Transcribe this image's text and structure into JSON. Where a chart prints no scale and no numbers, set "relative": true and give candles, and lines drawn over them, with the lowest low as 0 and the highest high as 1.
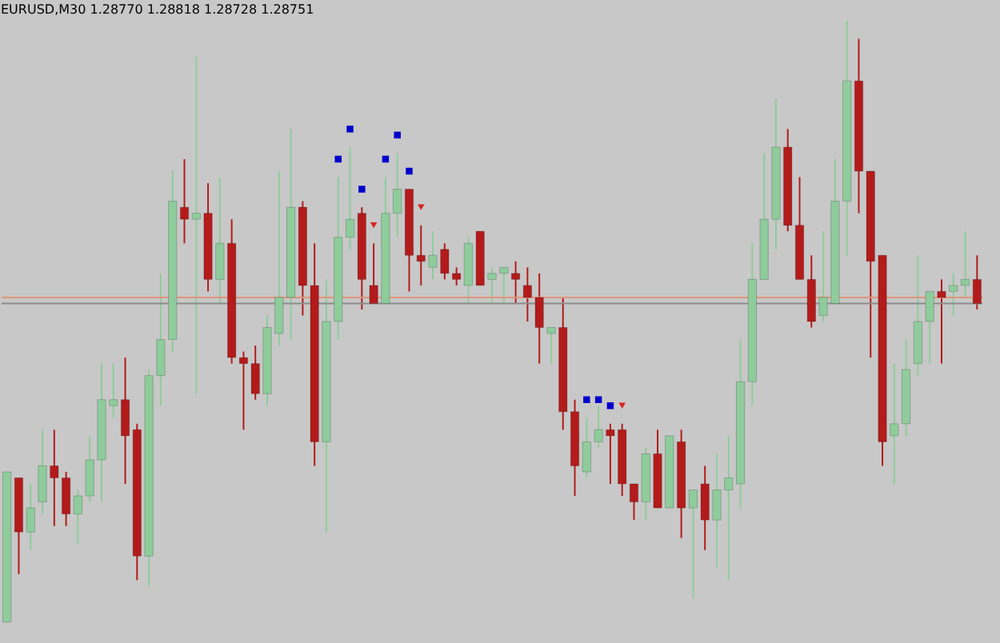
{
  "chart_data": {
    "type": "candlestick",
    "title": "EURUSD,M30 1.28770 1.28818 1.28728 1.28751",
    "relative": true,
    "tick_labels": false,
    "categories": [
      null,
      null,
      null,
      null,
      null,
      null,
      null,
      null,
      null,
      null,
      null,
      null,
      null,
      null,
      null,
      null,
      null,
      null,
      null,
      null,
      null,
      null,
      null,
      null,
      null,
      null,
      null,
      null,
      null,
      null,
      null,
      null,
      null,
      null,
      null,
      null,
      null,
      null,
      null,
      null,
      null,
      null,
      null,
      null,
      null,
      null,
      null,
      null,
      null,
      null,
      null,
      null,
      null,
      null,
      null,
      null,
      null,
      null,
      null,
      null,
      null,
      null,
      null,
      null,
      null,
      null,
      null,
      null,
      null,
      null,
      null,
      null,
      null,
      null,
      null,
      null,
      null,
      null,
      null,
      null,
      null,
      null,
      null
    ],
    "ohlc": [
      [
        0,
        0.25,
        0,
        0.25
      ],
      [
        0.24,
        0.24,
        0.08,
        0.15
      ],
      [
        0.15,
        0.23,
        0.12,
        0.19
      ],
      [
        0.2,
        0.32,
        0.18,
        0.26
      ],
      [
        0.26,
        0.32,
        0.16,
        0.24
      ],
      [
        0.24,
        0.25,
        0.16,
        0.18
      ],
      [
        0.18,
        0.22,
        0.13,
        0.21
      ],
      [
        0.21,
        0.31,
        0.2,
        0.27
      ],
      [
        0.27,
        0.43,
        0.2,
        0.37
      ],
      [
        0.36,
        0.43,
        0.34,
        0.37
      ],
      [
        0.37,
        0.44,
        0.23,
        0.31
      ],
      [
        0.32,
        0.33,
        0.07,
        0.11
      ],
      [
        0.11,
        0.42,
        0.06,
        0.41
      ],
      [
        0.41,
        0.58,
        0.36,
        0.47
      ],
      [
        0.47,
        0.75,
        0.45,
        0.7
      ],
      [
        0.69,
        0.77,
        0.63,
        0.67
      ],
      [
        0.67,
        0.94,
        0.38,
        0.68
      ],
      [
        0.68,
        0.73,
        0.55,
        0.57
      ],
      [
        0.57,
        0.74,
        0.53,
        0.63
      ],
      [
        0.63,
        0.67,
        0.43,
        0.44
      ],
      [
        0.44,
        0.45,
        0.32,
        0.43
      ],
      [
        0.43,
        0.46,
        0.37,
        0.38
      ],
      [
        0.38,
        0.51,
        0.36,
        0.49
      ],
      [
        0.48,
        0.75,
        0.46,
        0.54
      ],
      [
        0.54,
        0.82,
        0.47,
        0.69
      ],
      [
        0.69,
        0.7,
        0.51,
        0.56
      ],
      [
        0.56,
        0.63,
        0.26,
        0.3
      ],
      [
        0.3,
        0.57,
        0.15,
        0.5
      ],
      [
        0.5,
        0.74,
        0.47,
        0.64
      ],
      [
        0.64,
        0.79,
        0.62,
        0.67
      ],
      [
        0.68,
        0.69,
        0.52,
        0.57
      ],
      [
        0.56,
        0.63,
        0.53,
        0.53
      ],
      [
        0.53,
        0.74,
        0.53,
        0.68
      ],
      [
        0.68,
        0.78,
        0.64,
        0.72
      ],
      [
        0.72,
        0.72,
        0.55,
        0.61
      ],
      [
        0.61,
        0.66,
        0.56,
        0.6
      ],
      [
        0.59,
        0.65,
        0.57,
        0.61
      ],
      [
        0.62,
        0.63,
        0.57,
        0.58
      ],
      [
        0.58,
        0.59,
        0.56,
        0.57
      ],
      [
        0.56,
        0.64,
        0.53,
        0.63
      ],
      [
        0.65,
        0.65,
        0.56,
        0.56
      ],
      [
        0.57,
        0.59,
        0.53,
        0.58
      ],
      [
        0.58,
        0.59,
        0.53,
        0.59
      ],
      [
        0.58,
        0.6,
        0.53,
        0.57
      ],
      [
        0.56,
        0.59,
        0.5,
        0.54
      ],
      [
        0.54,
        0.58,
        0.43,
        0.49
      ],
      [
        0.48,
        0.49,
        0.43,
        0.49
      ],
      [
        0.49,
        0.54,
        0.32,
        0.35
      ],
      [
        0.35,
        0.37,
        0.21,
        0.26
      ],
      [
        0.25,
        0.34,
        0.24,
        0.3
      ],
      [
        0.3,
        0.36,
        0.29,
        0.32
      ],
      [
        0.32,
        0.33,
        0.23,
        0.31
      ],
      [
        0.32,
        0.33,
        0.21,
        0.23
      ],
      [
        0.23,
        0.23,
        0.17,
        0.2
      ],
      [
        0.2,
        0.29,
        0.17,
        0.28
      ],
      [
        0.28,
        0.32,
        0.19,
        0.19
      ],
      [
        0.19,
        0.31,
        0.19,
        0.31
      ],
      [
        0.3,
        0.32,
        0.14,
        0.19
      ],
      [
        0.19,
        0.22,
        0.04,
        0.22
      ],
      [
        0.23,
        0.26,
        0.12,
        0.17
      ],
      [
        0.17,
        0.28,
        0.09,
        0.22
      ],
      [
        0.22,
        0.31,
        0.07,
        0.24
      ],
      [
        0.23,
        0.47,
        0.19,
        0.4
      ],
      [
        0.4,
        0.63,
        0.36,
        0.57
      ],
      [
        0.57,
        0.78,
        0.57,
        0.67
      ],
      [
        0.67,
        0.87,
        0.62,
        0.79
      ],
      [
        0.79,
        0.82,
        0.65,
        0.66
      ],
      [
        0.66,
        0.74,
        0.57,
        0.57
      ],
      [
        0.57,
        0.61,
        0.49,
        0.5
      ],
      [
        0.51,
        0.65,
        0.5,
        0.54
      ],
      [
        0.53,
        0.77,
        0.53,
        0.7
      ],
      [
        0.7,
        1,
        0.61,
        0.9
      ],
      [
        0.9,
        0.97,
        0.68,
        0.75
      ],
      [
        0.75,
        0.75,
        0.44,
        0.6
      ],
      [
        0.61,
        0.61,
        0.26,
        0.3
      ],
      [
        0.31,
        0.43,
        0.23,
        0.33
      ],
      [
        0.33,
        0.47,
        0.31,
        0.42
      ],
      [
        0.43,
        0.61,
        0.41,
        0.5
      ],
      [
        0.5,
        0.55,
        0.43,
        0.55
      ],
      [
        0.55,
        0.57,
        0.43,
        0.54
      ],
      [
        0.55,
        0.58,
        0.51,
        0.56
      ],
      [
        0.56,
        0.65,
        0.54,
        0.57
      ],
      [
        0.57,
        0.61,
        0.52,
        0.53
      ]
    ],
    "colors": [
      "#8fcc9c",
      "#b31b1b",
      "#8fcc9c",
      "#8fcc9c",
      "#b31b1b",
      "#b31b1b",
      "#8fcc9c",
      "#8fcc9c",
      "#8fcc9c",
      "#8fcc9c",
      "#b31b1b",
      "#b31b1b",
      "#8fcc9c",
      "#8fcc9c",
      "#8fcc9c",
      "#b31b1b",
      "#8fcc9c",
      "#b31b1b",
      "#8fcc9c",
      "#b31b1b",
      "#b31b1b",
      "#b31b1b",
      "#8fcc9c",
      "#8fcc9c",
      "#8fcc9c",
      "#b31b1b",
      "#b31b1b",
      "#8fcc9c",
      "#8fcc9c",
      "#8fcc9c",
      "#b31b1b",
      "#b31b1b",
      "#8fcc9c",
      "#8fcc9c",
      "#b31b1b",
      "#b31b1b",
      "#8fcc9c",
      "#b31b1b",
      "#b31b1b",
      "#8fcc9c",
      "#b31b1b",
      "#8fcc9c",
      "#8fcc9c",
      "#b31b1b",
      "#b31b1b",
      "#b31b1b",
      "#8fcc9c",
      "#b31b1b",
      "#b31b1b",
      "#8fcc9c",
      "#8fcc9c",
      "#b31b1b",
      "#b31b1b",
      "#b31b1b",
      "#8fcc9c",
      "#b31b1b",
      "#8fcc9c",
      "#b31b1b",
      "#8fcc9c",
      "#b31b1b",
      "#8fcc9c",
      "#8fcc9c",
      "#8fcc9c",
      "#8fcc9c",
      "#8fcc9c",
      "#8fcc9c",
      "#b31b1b",
      "#b31b1b",
      "#b31b1b",
      "#8fcc9c",
      "#8fcc9c",
      "#8fcc9c",
      "#b31b1b",
      "#b31b1b",
      "#b31b1b",
      "#8fcc9c",
      "#8fcc9c",
      "#8fcc9c",
      "#8fcc9c",
      "#b31b1b",
      "#8fcc9c",
      "#8fcc9c",
      "#b31b1b"
    ],
    "series": [
      {
        "type": "scatter",
        "color": "#0000cc",
        "marker": "square",
        "values": [
          null,
          null,
          null,
          null,
          null,
          null,
          null,
          null,
          null,
          null,
          null,
          null,
          null,
          null,
          null,
          null,
          null,
          null,
          null,
          null,
          null,
          null,
          null,
          null,
          null,
          null,
          null,
          null,
          0.77,
          0.82,
          0.72,
          null,
          0.77,
          0.81,
          0.75,
          null,
          null,
          null,
          null,
          null,
          null,
          null,
          null,
          null,
          null,
          null,
          null,
          null,
          null,
          0.37,
          0.37,
          0.36,
          null,
          null,
          null,
          null,
          null,
          null,
          null,
          null,
          null,
          null,
          null,
          null,
          null,
          null,
          null,
          null,
          null,
          null,
          null,
          null,
          null,
          null,
          null,
          null,
          null,
          null,
          null,
          null,
          null,
          null,
          null
        ]
      },
      {
        "type": "scatter",
        "color": "#dd2222",
        "marker": "triangle",
        "values": [
          null,
          null,
          null,
          null,
          null,
          null,
          null,
          null,
          null,
          null,
          null,
          null,
          null,
          null,
          null,
          null,
          null,
          null,
          null,
          null,
          null,
          null,
          null,
          null,
          null,
          null,
          null,
          null,
          null,
          null,
          null,
          0.66,
          null,
          null,
          null,
          0.69,
          null,
          null,
          null,
          null,
          null,
          null,
          null,
          null,
          null,
          null,
          null,
          null,
          null,
          null,
          null,
          null,
          0.36,
          null,
          null,
          null,
          null,
          null,
          null,
          null,
          null,
          null,
          null,
          null,
          null,
          null,
          null,
          null,
          null,
          null,
          null,
          null,
          null,
          null,
          null,
          null,
          null,
          null,
          null,
          null,
          null,
          null,
          null
        ]
      }
    ],
    "ref_lines": [
      {
        "axis": "y",
        "value": 0.54,
        "color": "#e0967a"
      },
      {
        "axis": "y",
        "value": 0.53,
        "color": "#8c8c8c"
      }
    ]
  }
}
